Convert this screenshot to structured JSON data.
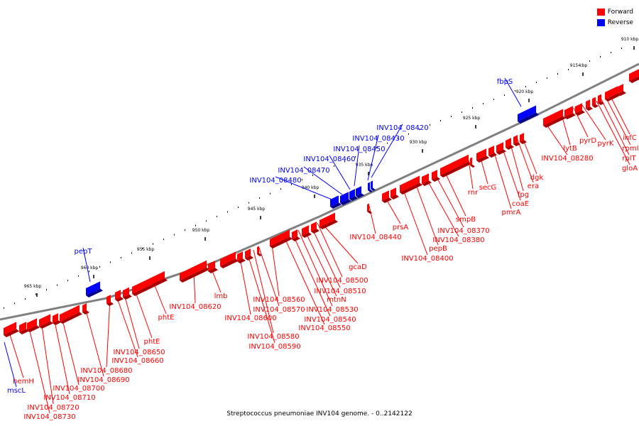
{
  "caption": "Streptococcus pneumoniae INV104 genome. - 0..2142122",
  "legend": {
    "forward_label": "Forward",
    "reverse_label": "Reverse",
    "forward_color": "#ff0000",
    "reverse_color": "#0000ff"
  },
  "backbone_color": "#808080",
  "ticks": [
    "910 kbp",
    "915 kbp",
    "920 kbp",
    "925 kbp",
    "930 kbp",
    "935 kbp",
    "940 kbp",
    "945 kbp",
    "950 kbp",
    "955 kbp",
    "960 kbp",
    "965 kbp"
  ],
  "forward_genes": [
    "infC",
    "rpmI",
    "rplT",
    "gloA",
    "pyrK",
    "pyrD",
    "lytB",
    "INV104_08280",
    "dgk",
    "era",
    "fpg",
    "coaE",
    "pmrA",
    "secG",
    "rnr",
    "smpB",
    "INV104_08370",
    "INV104_08380",
    "pepB",
    "INV104_08400",
    "prsA",
    "INV104_08440",
    "gcaD",
    "INV104_08500",
    "INV104_08510",
    "mtnN",
    "INV104_08530",
    "INV104_08540",
    "INV104_08550",
    "INV104_08560",
    "INV104_08570",
    "INV104_08580",
    "INV104_08590",
    "INV104_08600",
    "lmb",
    "INV104_08620",
    "phtE",
    "phtE",
    "INV104_08650",
    "INV104_08660",
    "INV104_08680",
    "INV104_08690",
    "INV104_08700",
    "INV104_08710",
    "INV104_08720",
    "INV104_08730",
    "hemH"
  ],
  "reverse_genes": [
    "fbpS",
    "INV104_08420",
    "INV104_08430",
    "INV104_08450",
    "INV104_08460",
    "INV104_08470",
    "INV104_08480",
    "pepT",
    "mscL"
  ]
}
